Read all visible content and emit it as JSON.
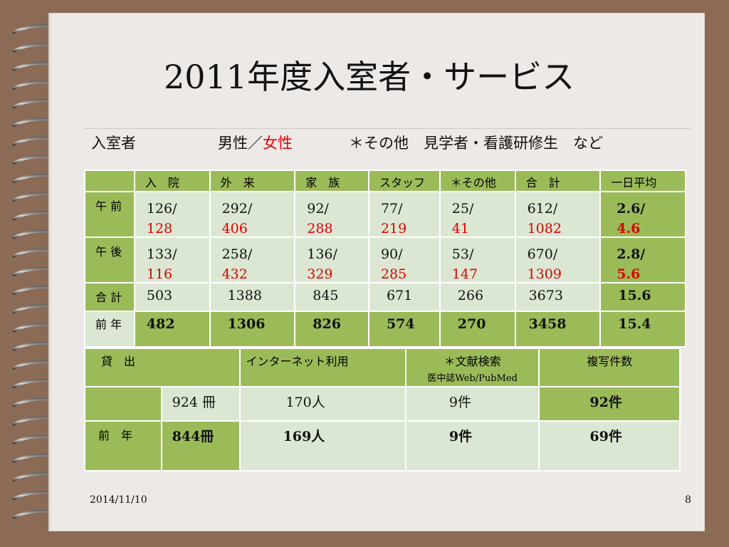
{
  "slide": {
    "title": "2011年度入室者・サービス",
    "legend": {
      "label": "入室者",
      "gender_prefix": "男性／",
      "gender_female": "女性",
      "note": "＊その他　見学者・看護研修生　など"
    },
    "table1": {
      "headers": [
        "入　院",
        "外　来",
        "家　族",
        "スタッフ",
        "＊その他",
        "合　計",
        "一日平均"
      ],
      "rows": [
        {
          "label": "午 前",
          "cells": [
            [
              "126/",
              "128"
            ],
            [
              "292/",
              "406"
            ],
            [
              " 92/",
              "288"
            ],
            [
              "77/",
              "219"
            ],
            [
              " 25/",
              "41"
            ],
            [
              "612/",
              "1082"
            ]
          ],
          "avg": [
            "2.6/",
            "4.6"
          ]
        },
        {
          "label": "午 後",
          "cells": [
            [
              "133/",
              "116"
            ],
            [
              "258/",
              "432"
            ],
            [
              "136/",
              "329"
            ],
            [
              "90/",
              "285"
            ],
            [
              " 53/",
              "147"
            ],
            [
              "670/",
              "1309"
            ]
          ],
          "avg": [
            "2.8/",
            "5.6"
          ]
        },
        {
          "label": "合 計",
          "cells": [
            "503",
            "1388",
            "845",
            "671",
            "266",
            "3673"
          ],
          "avg": "15.6"
        },
        {
          "label": "前 年",
          "cells": [
            "482",
            "1306",
            "826",
            "574",
            "270",
            "3458"
          ],
          "avg": "15.4"
        }
      ]
    },
    "table2": {
      "headers": {
        "loan": "貸　出",
        "internet": "インターネット利用",
        "search": "＊文献検索",
        "search_sub": "医中誌Web/PubMed",
        "copy": "複写件数"
      },
      "row1": {
        "loan": "924 冊",
        "internet": "170人",
        "search": "9件",
        "copy": "92件"
      },
      "row2": {
        "label": "前　年",
        "loan": "844冊",
        "internet": "169人",
        "search": "9件",
        "copy": "69件"
      }
    },
    "footer": {
      "date": "2014/11/10",
      "page": "8"
    }
  }
}
